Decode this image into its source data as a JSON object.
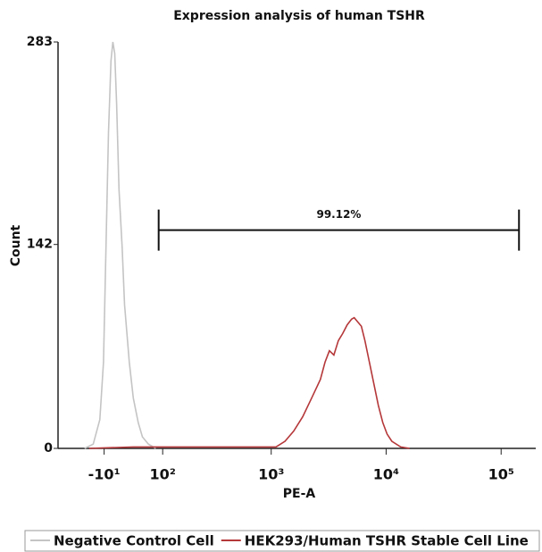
{
  "chart_data": {
    "type": "line",
    "title": "Expression analysis of human TSHR",
    "x_label": "PE-A",
    "y_label": "Count",
    "xscale": "biexponential",
    "xlim": [
      -100,
      200000
    ],
    "xticks": [
      {
        "value": -10,
        "label": "-10¹"
      },
      {
        "value": 100,
        "label": "10²"
      },
      {
        "value": 1000,
        "label": "10³"
      },
      {
        "value": 10000,
        "label": "10⁴"
      },
      {
        "value": 100000,
        "label": "10⁵"
      }
    ],
    "ylim": [
      0,
      283
    ],
    "yticks": [
      0,
      142,
      283
    ],
    "gate": {
      "label": "99.12%",
      "x": [
        90,
        143000
      ],
      "y": 152
    },
    "series": [
      {
        "name": "Negative Control Cell",
        "color": "#c4c4c4",
        "x": [
          -43,
          -28,
          -17,
          -11,
          -7,
          -3,
          1,
          4,
          7,
          10,
          14,
          19,
          23,
          31,
          38,
          47,
          55,
          67,
          83
        ],
        "values": [
          0,
          3,
          20,
          60,
          140,
          220,
          270,
          283,
          275,
          240,
          180,
          140,
          100,
          60,
          35,
          18,
          8,
          3,
          0
        ]
      },
      {
        "name": "HEK293/Human TSHR Stable Cell Line",
        "color": "#b5383a",
        "x": [
          -35,
          38,
          144,
          374,
          920,
          1100,
          1320,
          1570,
          1880,
          2250,
          2680,
          2940,
          3210,
          3510,
          3840,
          4190,
          4580,
          5010,
          5280,
          5670,
          6090,
          6540,
          7150,
          7820,
          8550,
          9350,
          10200,
          11200,
          13400,
          16000
        ],
        "values": [
          0,
          1,
          1,
          1,
          1,
          1,
          5,
          12,
          22,
          35,
          48,
          60,
          68,
          65,
          75,
          80,
          86,
          90,
          91,
          88,
          85,
          75,
          60,
          45,
          30,
          18,
          10,
          5,
          1,
          0
        ]
      }
    ]
  }
}
